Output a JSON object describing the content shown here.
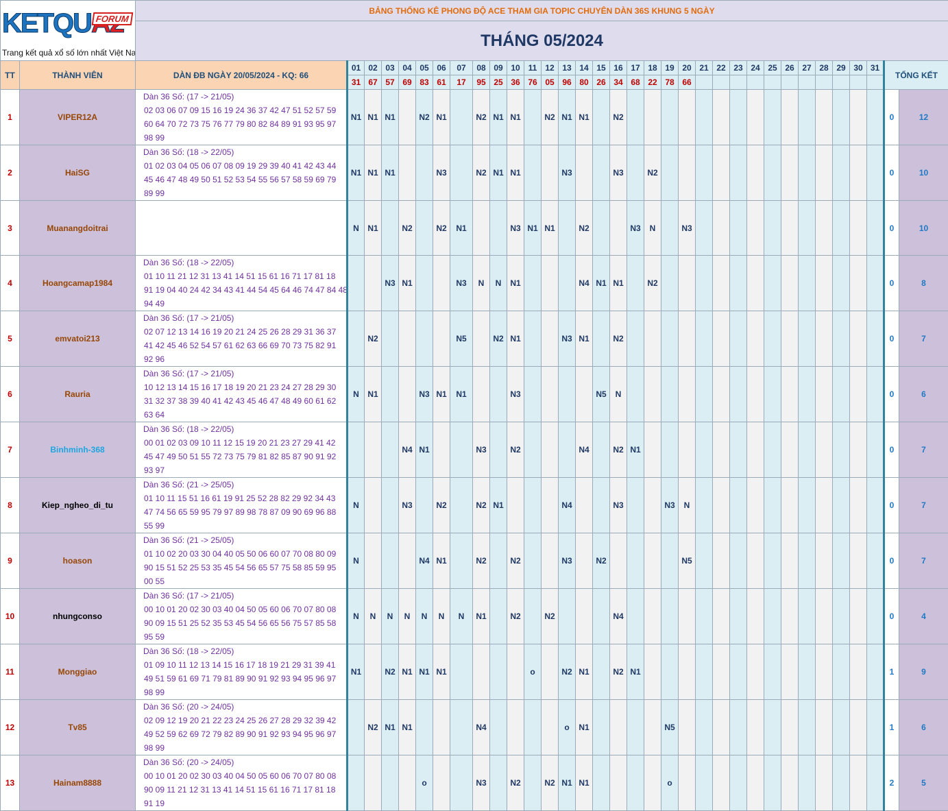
{
  "header": {
    "logo_text_blue": "KETQU",
    "logo_text_red": "A2",
    "logo_badge": "FORUM",
    "logo_tagline": "Trang kết quả xổ số lớn nhất Việt Nam",
    "top_title": "BẢNG THỐNG KÊ PHONG ĐỘ ACE THAM GIA TOPIC CHUYÊN DÀN 36S KHUNG 5 NGÀY",
    "month_title": "THÁNG 05/2024",
    "col_tt": "TT",
    "col_member": "THÀNH VIÊN",
    "col_dan": "DÀN ĐB NGÀY 20/05/2024 - KQ: 66",
    "col_summary": "TỔNG KẾT"
  },
  "days": [
    "01",
    "02",
    "03",
    "04",
    "05",
    "06",
    "07",
    "08",
    "09",
    "10",
    "11",
    "12",
    "13",
    "14",
    "15",
    "16",
    "17",
    "18",
    "19",
    "20",
    "21",
    "22",
    "23",
    "24",
    "25",
    "26",
    "27",
    "28",
    "29",
    "30",
    "31"
  ],
  "results": [
    "31",
    "67",
    "57",
    "69",
    "83",
    "61",
    "17",
    "95",
    "25",
    "36",
    "76",
    "05",
    "96",
    "80",
    "26",
    "34",
    "68",
    "22",
    "78",
    "66",
    "",
    "",
    "",
    "",
    "",
    "",
    "",
    "",
    "",
    "",
    ""
  ],
  "colors": {
    "name_default": "#974706",
    "name_blue": "#1fa5e0",
    "name_black": "#000000"
  },
  "members": [
    {
      "tt": "1",
      "name": "VIPER12A",
      "name_color": "brown",
      "dan": [
        "Dàn 36 Số: (17 -> 21/05)",
        "02 03 06 07 09 15 16 19 24 36 37 42 47 51 52 57 59",
        "60 64 70 72 73 75 76 77 79 80 82 84 89 91 93 95 97",
        "98 99"
      ],
      "marks": [
        "N1",
        "N1",
        "N1",
        "",
        "N2",
        "N1",
        "",
        "N2",
        "N1",
        "N1",
        "",
        "N2",
        "N1",
        "N1",
        "",
        "N2",
        "",
        "",
        "",
        "",
        "",
        "",
        "",
        "",
        "",
        "",
        "",
        "",
        "",
        "",
        ""
      ],
      "s1": "0",
      "s2": "12"
    },
    {
      "tt": "2",
      "name": "HaiSG",
      "name_color": "brown",
      "dan": [
        "Dàn 36 Số: (18 -> 22/05)",
        "01 02 03 04 05 06 07 08 09 19 29 39 40 41 42 43 44",
        "45 46 47 48 49 50 51 52 53 54 55 56 57 58 59 69 79",
        "89 99"
      ],
      "marks": [
        "N1",
        "N1",
        "N1",
        "",
        "",
        "N3",
        "",
        "N2",
        "N1",
        "N1",
        "",
        "",
        "N3",
        "",
        "",
        "N3",
        "",
        "N2",
        "",
        "",
        "",
        "",
        "",
        "",
        "",
        "",
        "",
        "",
        "",
        "",
        ""
      ],
      "s1": "0",
      "s2": "10"
    },
    {
      "tt": "3",
      "name": "Muanangdoitrai",
      "name_color": "brown",
      "dan": [
        "",
        "",
        "",
        ""
      ],
      "marks": [
        "N",
        "N1",
        "",
        "N2",
        "",
        "N2",
        "N1",
        "",
        "",
        "N3",
        "N1",
        "N1",
        "",
        "N2",
        "",
        "",
        "N3",
        "N",
        "",
        "N3",
        "",
        "",
        "",
        "",
        "",
        "",
        "",
        "",
        "",
        "",
        ""
      ],
      "s1": "0",
      "s2": "10"
    },
    {
      "tt": "4",
      "name": "Hoangcamap1984",
      "name_color": "brown",
      "dan": [
        "Dàn 36 Số: (18 -> 22/05)",
        "01 10 11 21 12 31 13 41 14 51 15 61 16 71 17 81 18",
        "91 19 04 40 24 42 34 43 41 44 54 45 64 46 74 47 84 48",
        "94 49"
      ],
      "marks": [
        "",
        "",
        "N3",
        "N1",
        "",
        "",
        "N3",
        "N",
        "N",
        "N1",
        "",
        "",
        "",
        "N4",
        "N1",
        "N1",
        "",
        "N2",
        "",
        "",
        "",
        "",
        "",
        "",
        "",
        "",
        "",
        "",
        "",
        "",
        ""
      ],
      "s1": "0",
      "s2": "8"
    },
    {
      "tt": "5",
      "name": "emvatoi213",
      "name_color": "brown",
      "dan": [
        "Dàn 36 Số: (17 -> 21/05)",
        "02 07 12 13 14 16 19 20 21 24 25 26 28 29 31 36 37",
        "41 42 45 46 52 54 57 61 62 63 66 69 70 73 75 82 91",
        "92 96"
      ],
      "marks": [
        "",
        "N2",
        "",
        "",
        "",
        "",
        "N5",
        "",
        "N2",
        "N1",
        "",
        "",
        "N3",
        "N1",
        "",
        "N2",
        "",
        "",
        "",
        "",
        "",
        "",
        "",
        "",
        "",
        "",
        "",
        "",
        "",
        "",
        ""
      ],
      "s1": "0",
      "s2": "7"
    },
    {
      "tt": "6",
      "name": "Rauria",
      "name_color": "brown",
      "dan": [
        "Dàn 36 Số: (17 -> 21/05)",
        "10 12 13 14 15 16 17 18 19 20 21 23 24 27 28 29 30",
        "31 32 37 38 39 40 41 42 43 45 46 47 48 49 60 61 62",
        "63 64"
      ],
      "marks": [
        "N",
        "N1",
        "",
        "",
        "N3",
        "N1",
        "N1",
        "",
        "",
        "N3",
        "",
        "",
        "",
        "",
        "N5",
        "N",
        "",
        "",
        "",
        "",
        "",
        "",
        "",
        "",
        "",
        "",
        "",
        "",
        "",
        "",
        ""
      ],
      "s1": "0",
      "s2": "6"
    },
    {
      "tt": "7",
      "name": "Binhminh-368",
      "name_color": "blue",
      "dan": [
        "Dàn 36 Số: (18 -> 22/05)",
        "00 01 02 03 09 10 11 12 15 19 20 21 23 27 29 41 42",
        "45 47 49 50 51 55 72 73 75 79 81 82 85 87 90 91 92",
        "93 97"
      ],
      "marks": [
        "",
        "",
        "",
        "N4",
        "N1",
        "",
        "",
        "N3",
        "",
        "N2",
        "",
        "",
        "",
        "N4",
        "",
        "N2",
        "N1",
        "",
        "",
        "",
        "",
        "",
        "",
        "",
        "",
        "",
        "",
        "",
        "",
        "",
        ""
      ],
      "s1": "0",
      "s2": "7"
    },
    {
      "tt": "8",
      "name": "Kiep_ngheo_di_tu",
      "name_color": "black",
      "dan": [
        "Dàn 36 Số: (21 -> 25/05)",
        "01 10 11 15 51 16 61 19 91 25 52 28 82 29 92 34 43",
        "47 74 56 65 59 95 79 97 89 98 78 87 09 90 69 96 88",
        "55 99"
      ],
      "marks": [
        "N",
        "",
        "",
        "N3",
        "",
        "N2",
        "",
        "N2",
        "N1",
        "",
        "",
        "",
        "N4",
        "",
        "",
        "N3",
        "",
        "",
        "N3",
        "N",
        "",
        "",
        "",
        "",
        "",
        "",
        "",
        "",
        "",
        "",
        ""
      ],
      "s1": "0",
      "s2": "7"
    },
    {
      "tt": "9",
      "name": "hoason",
      "name_color": "brown",
      "dan": [
        "Dàn 36 Số: (21 -> 25/05)",
        "01 10 02 20 03 30 04 40 05 50 06 60 07 70 08 80 09",
        "90 15 51 52 25 53 35 45 54 56 65 57 75 58 85 59 95",
        "00 55"
      ],
      "marks": [
        "N",
        "",
        "",
        "",
        "N4",
        "N1",
        "",
        "N2",
        "",
        "N2",
        "",
        "",
        "N3",
        "",
        "N2",
        "",
        "",
        "",
        "",
        "N5",
        "",
        "",
        "",
        "",
        "",
        "",
        "",
        "",
        "",
        "",
        ""
      ],
      "s1": "0",
      "s2": "7"
    },
    {
      "tt": "10",
      "name": "nhungconso",
      "name_color": "black",
      "dan": [
        "Dàn 36 Số: (17 -> 21/05)",
        "00 10 01 20 02 30 03 40 04 50 05 60 06 70 07 80 08",
        "90 09 15 51 25 52 35 53 45 54 56 65 56 75 57 85 58",
        "95 59"
      ],
      "marks": [
        "N",
        "N",
        "N",
        "N",
        "N",
        "N",
        "N",
        "N1",
        "",
        "N2",
        "",
        "N2",
        "",
        "",
        "",
        "N4",
        "",
        "",
        "",
        "",
        "",
        "",
        "",
        "",
        "",
        "",
        "",
        "",
        "",
        "",
        ""
      ],
      "s1": "0",
      "s2": "4"
    },
    {
      "tt": "11",
      "name": "Monggiao",
      "name_color": "brown",
      "dan": [
        "Dàn 36 Số: (18 -> 22/05)",
        "01 09 10 11 12 13 14 15 16 17 18 19 21 29 31 39 41",
        "49 51 59 61 69 71 79 81 89 90 91 92 93 94 95 96 97",
        "98 99"
      ],
      "marks": [
        "N1",
        "",
        "N2",
        "N1",
        "N1",
        "N1",
        "",
        "",
        "",
        "",
        "o",
        "",
        "N2",
        "N1",
        "",
        "N2",
        "N1",
        "",
        "",
        "",
        "",
        "",
        "",
        "",
        "",
        "",
        "",
        "",
        "",
        "",
        ""
      ],
      "s1": "1",
      "s2": "9"
    },
    {
      "tt": "12",
      "name": "Tv85",
      "name_color": "brown",
      "dan": [
        "Dàn 36 Số: (20 -> 24/05)",
        "02 09 12 19 20 21 22 23 24 25 26 27 28 29 32 39 42",
        "49 52 59 62 69 72 79 82 89 90 91 92 93 94 95 96 97",
        "98 99"
      ],
      "marks": [
        "",
        "N2",
        "N1",
        "N1",
        "",
        "",
        "",
        "N4",
        "",
        "",
        "",
        "",
        "o",
        "N1",
        "",
        "",
        "",
        "",
        "N5",
        "",
        "",
        "",
        "",
        "",
        "",
        "",
        "",
        "",
        "",
        "",
        ""
      ],
      "s1": "1",
      "s2": "6"
    },
    {
      "tt": "13",
      "name": "Hainam8888",
      "name_color": "brown",
      "dan": [
        "Dàn 36 Số: (20 -> 24/05)",
        "00 10 01 20 02 30 03 40 04 50 05 60 06 70 07 80 08",
        "90 09 11 21 12 31 13 41 14 51 15 61 16 71 17 81 18",
        "91 19"
      ],
      "marks": [
        "",
        "",
        "",
        "",
        "o",
        "",
        "",
        "N3",
        "",
        "N2",
        "",
        "N2",
        "N1",
        "N1",
        "",
        "",
        "",
        "",
        "o",
        "",
        "",
        "",
        "",
        "",
        "",
        "",
        "",
        "",
        "",
        "",
        ""
      ],
      "s1": "2",
      "s2": "5"
    }
  ]
}
